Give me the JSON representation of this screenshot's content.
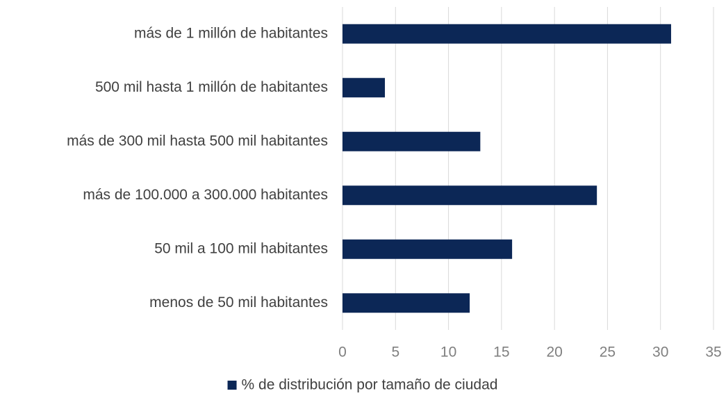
{
  "chart_data": {
    "type": "bar",
    "orientation": "horizontal",
    "categories": [
      "más de 1 millón de habitantes",
      "500 mil hasta 1 millón de habitantes",
      "más de 300 mil hasta 500 mil habitantes",
      "más de 100.000 a 300.000 habitantes",
      "50 mil a 100 mil habitantes",
      "menos de 50 mil habitantes"
    ],
    "series": [
      {
        "name": "% de distribución por tamaño de ciudad",
        "color": "#0c2756",
        "values": [
          31,
          4,
          13,
          24,
          16,
          12
        ]
      }
    ],
    "xlim": [
      0,
      35
    ],
    "xticks": [
      0,
      5,
      10,
      15,
      20,
      25,
      30,
      35
    ],
    "grid": true,
    "legend": "bottom"
  }
}
